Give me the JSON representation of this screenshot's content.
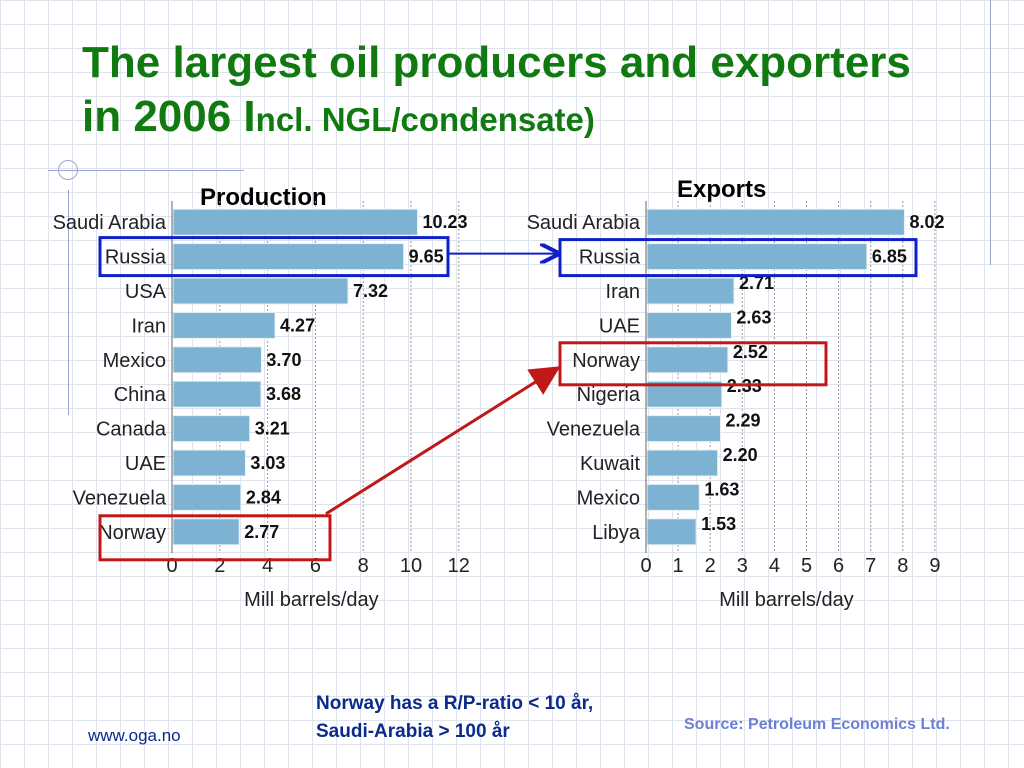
{
  "slide": {
    "title_main": "The largest oil producers and exporters in 2006 I",
    "title_sub": "ncl. NGL/condensate)",
    "note_line1": "Norway has a R/P-ratio < 10 år,",
    "note_line2": "Saudi-Arabia > 100 år",
    "source": "Source: Petroleum Economics Ltd.",
    "url": "www.oga.no"
  },
  "colors": {
    "bar": "#7eb2d2",
    "title": "#107a10",
    "blue_highlight": "#1020c8",
    "red_highlight": "#c01818"
  },
  "chart_data": [
    {
      "type": "bar",
      "orientation": "horizontal",
      "title": "Production",
      "categories": [
        "Saudi Arabia",
        "Russia",
        "USA",
        "Iran",
        "Mexico",
        "China",
        "Canada",
        "UAE",
        "Venezuela",
        "Norway"
      ],
      "values": [
        10.23,
        9.65,
        7.32,
        4.27,
        3.7,
        3.68,
        3.21,
        3.03,
        2.84,
        2.77
      ],
      "value_labels": [
        "10.23",
        "9.65",
        "7.32",
        "4.27",
        "3.70",
        "3.68",
        "3.21",
        "3.03",
        "2.84",
        "2.77"
      ],
      "xlim": [
        0,
        12
      ],
      "xticks": [
        "0",
        "2",
        "4",
        "6",
        "8",
        "10",
        "12"
      ],
      "xlabel": "Mill barrels/day",
      "grid": "vertical dashed",
      "highlights": [
        {
          "category": "Russia",
          "color": "blue"
        },
        {
          "category": "Norway",
          "color": "red"
        }
      ]
    },
    {
      "type": "bar",
      "orientation": "horizontal",
      "title": "Exports",
      "categories": [
        "Saudi Arabia",
        "Russia",
        "Iran",
        "UAE",
        "Norway",
        "Nigeria",
        "Venezuela",
        "Kuwait",
        "Mexico",
        "Libya"
      ],
      "values": [
        8.02,
        6.85,
        2.71,
        2.63,
        2.52,
        2.33,
        2.29,
        2.2,
        1.63,
        1.53
      ],
      "value_labels": [
        "8.02",
        "6.85",
        "2.71",
        "2.63",
        "2.52",
        "2.33",
        "2.29",
        "2.20",
        "1.63",
        "1.53"
      ],
      "xlim": [
        0,
        9
      ],
      "xticks": [
        "0",
        "1",
        "2",
        "3",
        "4",
        "5",
        "6",
        "7",
        "8",
        "9"
      ],
      "xlabel": "Mill barrels/day",
      "grid": "vertical dashed",
      "highlights": [
        {
          "category": "Russia",
          "color": "blue"
        },
        {
          "category": "Norway",
          "color": "red"
        }
      ]
    }
  ]
}
